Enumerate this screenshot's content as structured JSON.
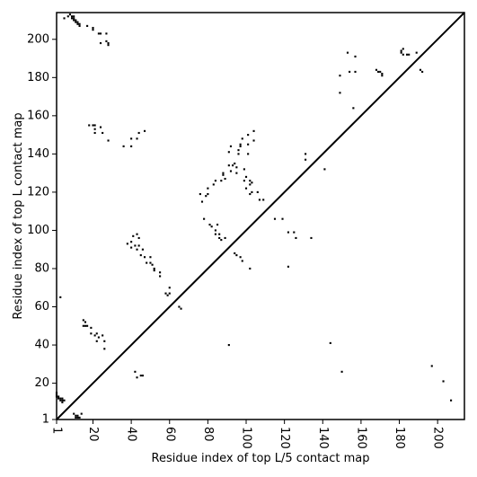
{
  "chart_data": {
    "type": "scatter",
    "subtype": "contact-map",
    "title": "",
    "xlabel": "Residue index of top L/5 contact map",
    "ylabel": "Residue index of top L contact map",
    "xlim": [
      1,
      214
    ],
    "ylim": [
      1,
      214
    ],
    "xticks": [
      1,
      20,
      40,
      60,
      80,
      100,
      120,
      140,
      160,
      180,
      200
    ],
    "yticks": [
      1,
      20,
      40,
      60,
      80,
      100,
      120,
      140,
      160,
      180,
      200
    ],
    "x_tick_rotation": -90,
    "grid": false,
    "diagonal_line": true,
    "marker": "square",
    "marker_color": "#000000",
    "upper_triangle_series": {
      "name": "",
      "points": [
        [
          5,
          211
        ],
        [
          7,
          212
        ],
        [
          8,
          213
        ],
        [
          9,
          212
        ],
        [
          9,
          211
        ],
        [
          10,
          212
        ],
        [
          10,
          211
        ],
        [
          10,
          210
        ],
        [
          11,
          210
        ],
        [
          11,
          209
        ],
        [
          12,
          209
        ],
        [
          12,
          208
        ],
        [
          13,
          208
        ],
        [
          13,
          207
        ],
        [
          17,
          207
        ],
        [
          20,
          206
        ],
        [
          20,
          205
        ],
        [
          23,
          203
        ],
        [
          24,
          203
        ],
        [
          24,
          198
        ],
        [
          27,
          203
        ],
        [
          27,
          199
        ],
        [
          28,
          198
        ],
        [
          28,
          197
        ],
        [
          18,
          155
        ],
        [
          20,
          155
        ],
        [
          21,
          155
        ],
        [
          21,
          153
        ],
        [
          21,
          151
        ],
        [
          24,
          154
        ],
        [
          25,
          151
        ],
        [
          28,
          147
        ],
        [
          36,
          144
        ],
        [
          40,
          148
        ],
        [
          40,
          144
        ],
        [
          43,
          148
        ],
        [
          44,
          151
        ],
        [
          47,
          152
        ],
        [
          38,
          93
        ],
        [
          40,
          94
        ],
        [
          40,
          91
        ],
        [
          41,
          97
        ],
        [
          42,
          92
        ],
        [
          43,
          98
        ],
        [
          43,
          90
        ],
        [
          44,
          96
        ],
        [
          44,
          92
        ],
        [
          45,
          87
        ],
        [
          46,
          90
        ],
        [
          47,
          86
        ],
        [
          48,
          83
        ],
        [
          50,
          86
        ],
        [
          50,
          83
        ],
        [
          51,
          82
        ],
        [
          52,
          80
        ],
        [
          52,
          79
        ],
        [
          55,
          78
        ],
        [
          55,
          76
        ],
        [
          58,
          67
        ],
        [
          59,
          66
        ],
        [
          60,
          67
        ],
        [
          60,
          70
        ],
        [
          65,
          60
        ],
        [
          66,
          59
        ],
        [
          76,
          119
        ],
        [
          77,
          115
        ],
        [
          78,
          106
        ],
        [
          79,
          118
        ],
        [
          80,
          122
        ],
        [
          80,
          119
        ],
        [
          81,
          103
        ],
        [
          82,
          102
        ],
        [
          83,
          124
        ],
        [
          84,
          126
        ],
        [
          84,
          100
        ],
        [
          84,
          98
        ],
        [
          85,
          103
        ],
        [
          86,
          96
        ],
        [
          86,
          98
        ],
        [
          87,
          126
        ],
        [
          87,
          95
        ],
        [
          88,
          130
        ],
        [
          88,
          129
        ],
        [
          89,
          127
        ],
        [
          89,
          96
        ],
        [
          91,
          141
        ],
        [
          91,
          134
        ],
        [
          92,
          144
        ],
        [
          92,
          131
        ],
        [
          93,
          134
        ],
        [
          94,
          135
        ],
        [
          95,
          133
        ],
        [
          95,
          130
        ],
        [
          96,
          140
        ],
        [
          96,
          142
        ],
        [
          97,
          145
        ],
        [
          97,
          144
        ],
        [
          98,
          148
        ],
        [
          99,
          132
        ],
        [
          99,
          126
        ],
        [
          100,
          128
        ],
        [
          100,
          122
        ],
        [
          101,
          140
        ],
        [
          101,
          145
        ],
        [
          101,
          150
        ],
        [
          102,
          126
        ],
        [
          102,
          124
        ],
        [
          102,
          119
        ],
        [
          103,
          120
        ],
        [
          103,
          125
        ],
        [
          104,
          147
        ],
        [
          104,
          152
        ],
        [
          106,
          120
        ],
        [
          107,
          116
        ],
        [
          109,
          116
        ],
        [
          94,
          88
        ],
        [
          95,
          87
        ],
        [
          97,
          86
        ],
        [
          98,
          84
        ],
        [
          102,
          80
        ],
        [
          115,
          106
        ],
        [
          119,
          106
        ],
        [
          122,
          99
        ],
        [
          122,
          81
        ],
        [
          125,
          99
        ],
        [
          126,
          96
        ],
        [
          131,
          140
        ],
        [
          131,
          137
        ],
        [
          134,
          96
        ],
        [
          141,
          132
        ],
        [
          149,
          181
        ],
        [
          149,
          172
        ],
        [
          153,
          193
        ],
        [
          154,
          183
        ],
        [
          156,
          164
        ],
        [
          157,
          191
        ],
        [
          157,
          183
        ],
        [
          168,
          184
        ],
        [
          169,
          183
        ],
        [
          170,
          183
        ],
        [
          171,
          182
        ],
        [
          171,
          181
        ],
        [
          181,
          193
        ],
        [
          181,
          194
        ],
        [
          182,
          195
        ],
        [
          182,
          192
        ],
        [
          184,
          192
        ],
        [
          185,
          192
        ],
        [
          189,
          193
        ],
        [
          191,
          184
        ],
        [
          192,
          183
        ],
        [
          91,
          40
        ],
        [
          144,
          41
        ],
        [
          150,
          26
        ],
        [
          197,
          29
        ],
        [
          203,
          21
        ],
        [
          207,
          11
        ]
      ]
    },
    "lower_triangle_series": {
      "name": "",
      "points": [
        [
          1,
          15
        ],
        [
          1,
          14
        ],
        [
          1,
          13
        ],
        [
          2,
          13
        ],
        [
          2,
          12
        ],
        [
          3,
          12
        ],
        [
          3,
          11
        ],
        [
          4,
          12
        ],
        [
          4,
          11
        ],
        [
          4,
          10
        ],
        [
          5,
          11
        ],
        [
          3,
          65
        ],
        [
          10,
          4
        ],
        [
          11,
          3
        ],
        [
          11,
          2
        ],
        [
          12,
          3
        ],
        [
          12,
          2
        ],
        [
          13,
          2
        ],
        [
          14,
          4
        ],
        [
          15,
          53
        ],
        [
          16,
          52
        ],
        [
          16,
          50
        ],
        [
          15,
          50
        ],
        [
          17,
          50
        ],
        [
          19,
          49
        ],
        [
          19,
          46
        ],
        [
          21,
          45
        ],
        [
          22,
          46
        ],
        [
          23,
          44
        ],
        [
          22,
          42
        ],
        [
          25,
          45
        ],
        [
          26,
          42
        ],
        [
          26,
          38
        ],
        [
          42,
          26
        ],
        [
          43,
          23
        ],
        [
          45,
          24
        ],
        [
          46,
          24
        ]
      ]
    }
  }
}
